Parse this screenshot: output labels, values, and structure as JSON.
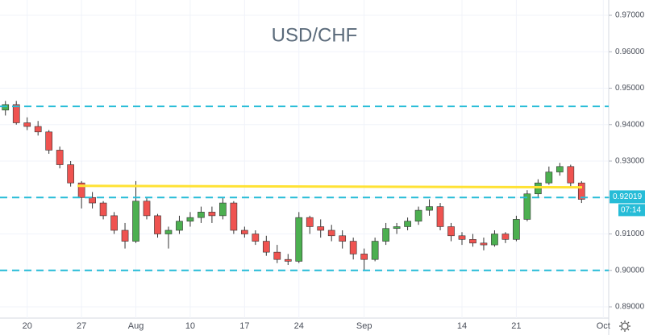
{
  "chart_data": {
    "type": "candlestick",
    "title": "USD/CHF",
    "categories": [
      null,
      null,
      "20",
      null,
      null,
      null,
      null,
      "27",
      null,
      null,
      null,
      null,
      "Aug",
      null,
      null,
      null,
      null,
      "10",
      null,
      null,
      null,
      null,
      "17",
      null,
      null,
      null,
      null,
      "24",
      null,
      null,
      null,
      null,
      null,
      "Sep",
      null,
      null,
      null,
      null,
      null,
      null,
      null,
      null,
      "14",
      null,
      null,
      null,
      null,
      "21",
      null,
      null,
      null,
      null,
      null,
      null,
      null,
      "Oct"
    ],
    "open": [
      0.944,
      0.9455,
      0.9405,
      0.9395,
      0.938,
      0.933,
      0.929,
      0.924,
      0.92,
      0.9185,
      0.915,
      0.911,
      0.908,
      0.919,
      0.915,
      0.91,
      0.911,
      0.9135,
      0.9145,
      0.916,
      0.915,
      0.9185,
      0.911,
      0.91,
      0.908,
      0.905,
      0.903,
      0.9025,
      0.9145,
      0.912,
      0.911,
      0.9095,
      0.908,
      0.9045,
      0.903,
      0.908,
      0.9115,
      0.912,
      0.9135,
      0.9165,
      0.9175,
      0.912,
      0.9095,
      0.9085,
      0.9075,
      0.907,
      0.91,
      0.9085,
      0.914,
      0.921,
      0.924,
      0.927,
      0.9285,
      0.924,
      null,
      null
    ],
    "high": [
      0.9465,
      0.9465,
      0.942,
      0.941,
      0.9385,
      0.934,
      0.93,
      0.9245,
      0.9215,
      0.919,
      0.916,
      0.913,
      0.9245,
      0.92,
      0.9155,
      0.912,
      0.915,
      0.916,
      0.9175,
      0.9175,
      0.92,
      0.919,
      0.912,
      0.911,
      0.9095,
      0.907,
      0.9045,
      0.916,
      0.915,
      0.914,
      0.9125,
      0.911,
      0.909,
      0.906,
      0.909,
      0.913,
      0.913,
      0.9145,
      0.9175,
      0.9195,
      0.9185,
      0.913,
      0.9105,
      0.91,
      0.909,
      0.911,
      0.9105,
      0.915,
      0.922,
      0.925,
      0.9285,
      0.9295,
      0.929,
      0.9245,
      null,
      null
    ],
    "low": [
      0.9425,
      0.94,
      0.9385,
      0.937,
      0.932,
      0.928,
      0.923,
      0.917,
      0.917,
      0.914,
      0.91,
      0.906,
      0.9075,
      0.914,
      0.909,
      0.906,
      0.91,
      0.912,
      0.913,
      0.913,
      0.914,
      0.91,
      0.909,
      0.907,
      0.904,
      0.902,
      0.9015,
      0.902,
      0.91,
      0.909,
      0.908,
      0.906,
      0.903,
      0.9,
      0.9025,
      0.907,
      0.91,
      0.911,
      0.9125,
      0.915,
      0.911,
      0.908,
      0.907,
      0.9065,
      0.9055,
      0.9065,
      0.9075,
      0.908,
      0.9135,
      0.92,
      0.9235,
      0.926,
      0.923,
      0.9185,
      null,
      null
    ],
    "close": [
      0.9455,
      0.9405,
      0.9395,
      0.938,
      0.933,
      0.929,
      0.924,
      0.92,
      0.9185,
      0.915,
      0.911,
      0.908,
      0.919,
      0.915,
      0.91,
      0.911,
      0.9135,
      0.9145,
      0.916,
      0.915,
      0.9185,
      0.911,
      0.91,
      0.908,
      0.905,
      0.903,
      0.9025,
      0.9145,
      0.912,
      0.911,
      0.9095,
      0.908,
      0.9045,
      0.903,
      0.908,
      0.9115,
      0.912,
      0.9135,
      0.9165,
      0.9175,
      0.912,
      0.9095,
      0.9085,
      0.9075,
      0.907,
      0.91,
      0.9085,
      0.914,
      0.921,
      0.924,
      0.927,
      0.9285,
      0.924,
      0.9195,
      null,
      null
    ],
    "up_color": "#4caf50",
    "down_color": "#ef5350",
    "ylim": [
      0.88691,
      0.9742
    ],
    "yticks": [
      {
        "value": 0.89,
        "label": "0.89000"
      },
      {
        "value": 0.9,
        "label": "0.90000"
      },
      {
        "value": 0.91,
        "label": "0.91000"
      },
      {
        "value": 0.92,
        "label": "0.92000"
      },
      {
        "value": 0.93,
        "label": "0.93000"
      },
      {
        "value": 0.94,
        "label": "0.94000"
      },
      {
        "value": 0.95,
        "label": "0.95000"
      },
      {
        "value": 0.96,
        "label": "0.96000"
      },
      {
        "value": 0.97,
        "label": "0.97000"
      }
    ],
    "grid": true,
    "hlines": [
      {
        "value": 0.945,
        "color": "#26bcd7"
      },
      {
        "value": 0.92,
        "color": "#26bcd7"
      },
      {
        "value": 0.9,
        "color": "#26bcd7"
      }
    ],
    "trendline": {
      "values": [
        0.9232,
        0.9228
      ],
      "color": "#ffe234"
    },
    "last_price": {
      "value": 0.92019,
      "label": "0.92019",
      "color": "#26bcd7"
    },
    "countdown": "07:14"
  }
}
